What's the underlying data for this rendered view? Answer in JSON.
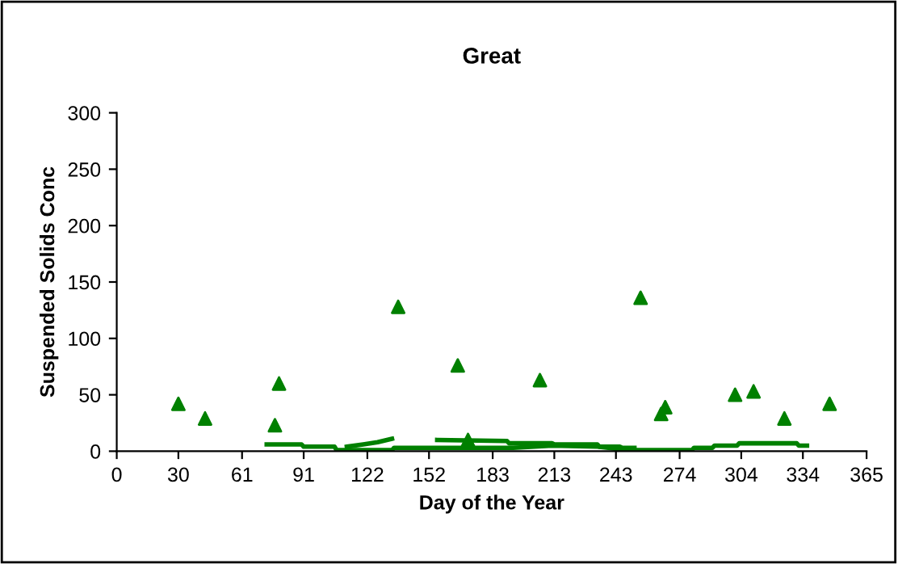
{
  "chart_data": {
    "type": "scatter",
    "title": "Great",
    "xlabel": "Day of the Year",
    "ylabel": "Suspended Solids Conc",
    "xlim": [
      0,
      365
    ],
    "xticks": [
      0,
      30,
      61,
      91,
      122,
      152,
      183,
      213,
      243,
      274,
      304,
      334,
      365
    ],
    "ylim": [
      0,
      300
    ],
    "yticks": [
      0,
      50,
      100,
      150,
      200,
      250,
      300
    ],
    "grid": false,
    "legend": false,
    "series": [
      {
        "color": "#008000",
        "marker": "triangle",
        "x": [
          30,
          43,
          77,
          79,
          137,
          166,
          171,
          206,
          255,
          265,
          267,
          301,
          310,
          325,
          347
        ],
        "values": [
          42,
          29,
          23,
          60,
          128,
          76,
          10,
          63,
          136,
          33,
          39,
          50,
          53,
          29,
          42
        ]
      },
      {
        "type": "line",
        "color": "#008000",
        "marker": "none",
        "x": [
          73,
          90,
          91,
          106,
          107,
          134,
          135,
          193,
          212,
          234,
          249,
          280,
          281,
          290,
          291,
          302,
          303,
          331,
          332,
          336
        ],
        "values": [
          6,
          6,
          4,
          4,
          1,
          1,
          3,
          3,
          5,
          4,
          1,
          1,
          3,
          3,
          5,
          5,
          7,
          7,
          5,
          5
        ]
      },
      {
        "type": "line",
        "color": "#008000",
        "marker": "none",
        "x": [
          112,
          120,
          127,
          134,
          135,
          156,
          190,
          191,
          212,
          213,
          234,
          235,
          245,
          246,
          252
        ],
        "values": [
          4,
          6,
          8,
          11,
          null,
          10,
          9,
          7,
          7,
          6,
          6,
          4,
          4,
          3,
          3
        ]
      }
    ]
  }
}
